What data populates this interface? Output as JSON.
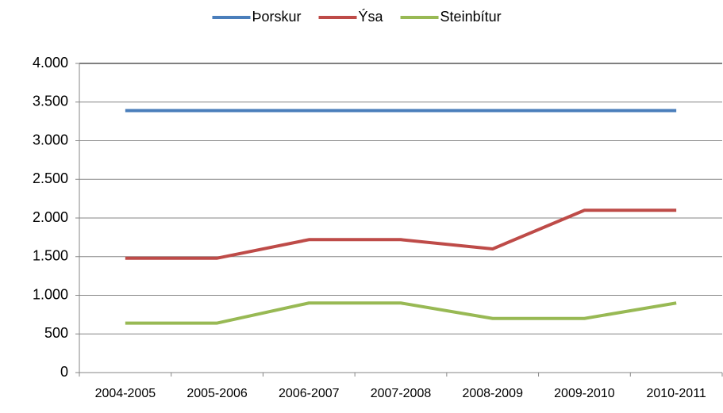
{
  "chart_data": {
    "type": "line",
    "categories": [
      "2004-2005",
      "2005-2006",
      "2006-2007",
      "2007-2008",
      "2008-2009",
      "2009-2010",
      "2010-2011"
    ],
    "series": [
      {
        "name": "Þorskur",
        "color": "#4a7ebb",
        "values": [
          3390,
          3390,
          3390,
          3390,
          3390,
          3390,
          3390
        ]
      },
      {
        "name": "Ýsa",
        "color": "#be4b48",
        "values": [
          1480,
          1480,
          1720,
          1720,
          1600,
          2100,
          2100
        ]
      },
      {
        "name": "Steinbítur",
        "color": "#98b954",
        "values": [
          640,
          640,
          900,
          900,
          700,
          700,
          900
        ]
      }
    ],
    "ylim": [
      0,
      4000
    ],
    "yticks": [
      0,
      500,
      {
        "value": 1000,
        "label": "1.000"
      },
      {
        "value": 1500,
        "label": "1.500"
      },
      {
        "value": 2000,
        "label": "2.000"
      },
      {
        "value": 2500,
        "label": "2.500"
      },
      {
        "value": 3000,
        "label": "3.000"
      },
      {
        "value": 3500,
        "label": "3.500"
      },
      {
        "value": 4000,
        "label": "4.000"
      }
    ],
    "grid": true,
    "legend": "top"
  }
}
